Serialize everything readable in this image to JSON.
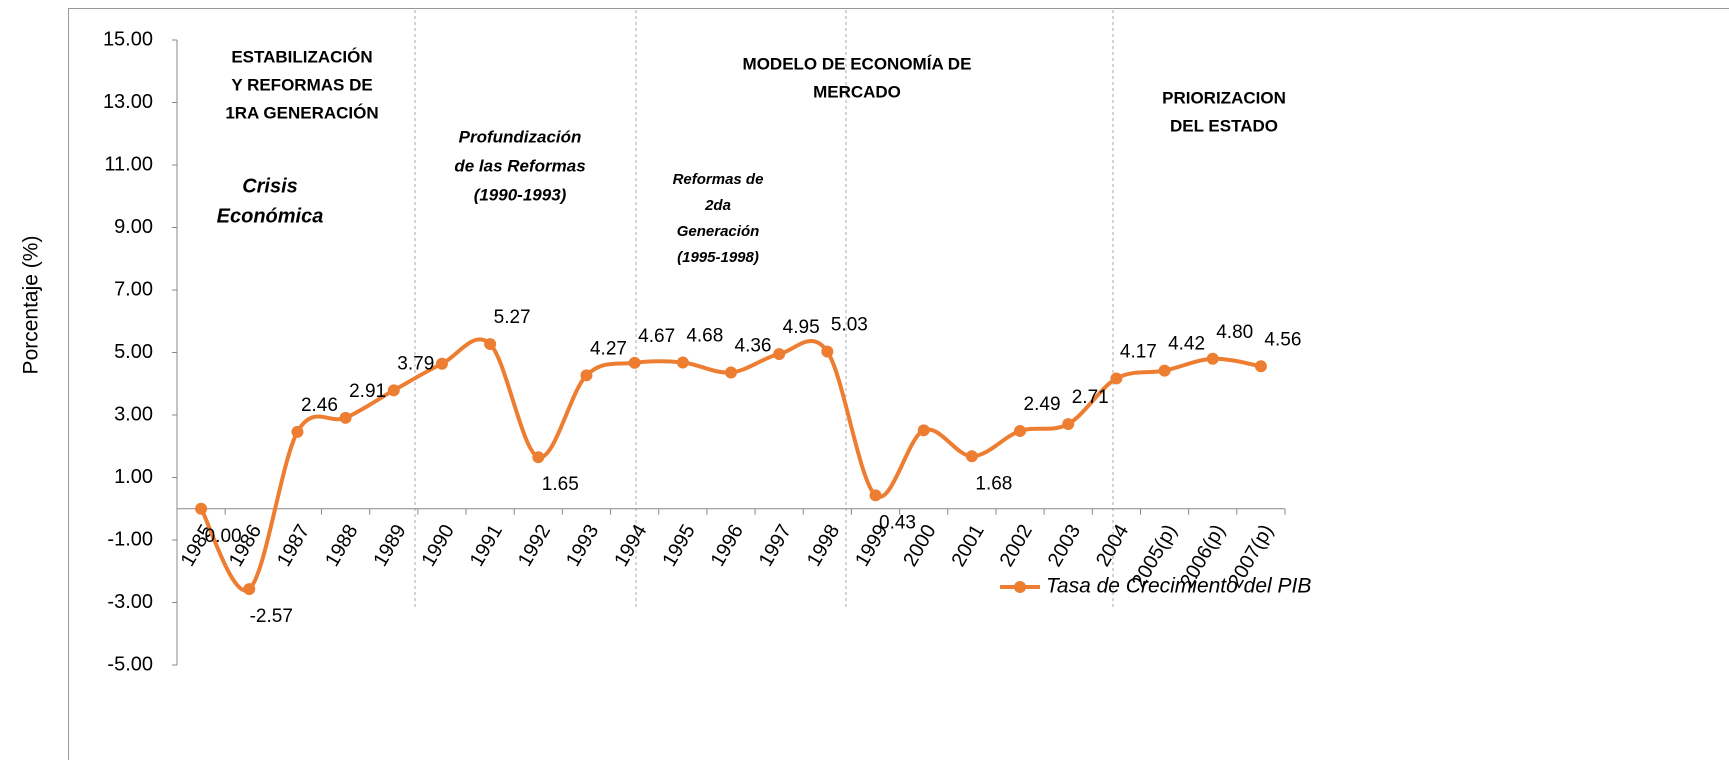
{
  "chart_data": {
    "type": "line",
    "y_label": "Porcentaje (%)",
    "categories": [
      "1985",
      "1986",
      "1987",
      "1988",
      "1989",
      "1990",
      "1991",
      "1992",
      "1993",
      "1994",
      "1995",
      "1996",
      "1997",
      "1998",
      "1999",
      "2000",
      "2001",
      "2002",
      "2003",
      "2004",
      "2005(p)",
      "2006(p)",
      "2007(p)"
    ],
    "series": [
      {
        "name": "Tasa de Crecimiento del PIB",
        "color": "#ed7d31",
        "values": [
          0,
          -2.57,
          2.46,
          2.91,
          3.79,
          4.64,
          5.27,
          1.65,
          4.27,
          4.67,
          4.68,
          4.36,
          4.95,
          5.03,
          0.43,
          2.51,
          1.68,
          2.49,
          2.71,
          4.17,
          4.42,
          4.8,
          4.56
        ],
        "value_labels": [
          "0.00",
          "-2.57",
          "2.46",
          "2.91",
          "3.79",
          null,
          "5.27",
          "1.65",
          "4.27",
          "4.67",
          "4.68",
          "4.36",
          "4.95",
          "5.03",
          "0.43",
          null,
          "1.68",
          "2.49",
          "2.71",
          "4.17",
          "4.42",
          "4.80",
          "4.56"
        ]
      }
    ],
    "ylim": [
      -5,
      15
    ],
    "yticks": [
      {
        "value": -5,
        "label": "-5.00"
      },
      {
        "value": -3,
        "label": "-3.00"
      },
      {
        "value": -1,
        "label": "-1.00"
      },
      {
        "value": 1,
        "label": "1.00"
      },
      {
        "value": 3,
        "label": "3.00"
      },
      {
        "value": 5,
        "label": "5.00"
      },
      {
        "value": 7,
        "label": "7.00"
      },
      {
        "value": 9,
        "label": "9.00"
      },
      {
        "value": 11,
        "label": "11.00"
      },
      {
        "value": 13,
        "label": "13.00"
      },
      {
        "value": 15,
        "label": "15.00"
      }
    ],
    "annotations": [
      {
        "lines": [
          "ESTABILIZACIÓN",
          "Y REFORMAS DE",
          "1RA GENERACIÓN"
        ],
        "style": "bold"
      },
      {
        "lines": [
          "Crisis",
          "Económica"
        ],
        "style": "bold-italic"
      },
      {
        "lines": [
          "Profundización",
          "de las Reformas",
          "(1990-1993)"
        ],
        "style": "bold-italic"
      },
      {
        "lines": [
          "MODELO DE ECONOMÍA DE",
          "MERCADO"
        ],
        "style": "bold"
      },
      {
        "lines": [
          "Reformas de",
          "2da",
          "Generación",
          "(1995-1998)"
        ],
        "style": "bold-italic"
      },
      {
        "lines": [
          "PRIORIZACION",
          "DEL ESTADO"
        ],
        "style": "bold"
      }
    ],
    "legend": "bottom-right"
  }
}
